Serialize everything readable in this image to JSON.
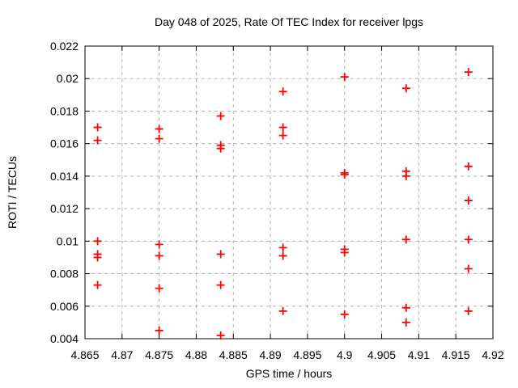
{
  "chart_data": {
    "type": "scatter",
    "title": "Day 048 of 2025, Rate Of TEC Index for receiver lpgs",
    "xlabel": "GPS time / hours",
    "ylabel": "ROTI / TECUs",
    "xlim": [
      4.865,
      4.92
    ],
    "ylim": [
      0.004,
      0.022
    ],
    "xtick_values": [
      4.865,
      4.87,
      4.875,
      4.88,
      4.885,
      4.89,
      4.895,
      4.9,
      4.905,
      4.91,
      4.915,
      4.92
    ],
    "xtick_labels": [
      "4.865",
      "4.87",
      "4.875",
      "4.88",
      "4.885",
      "4.89",
      "4.895",
      "4.9",
      "4.905",
      "4.91",
      "4.915",
      "4.92"
    ],
    "ytick_values": [
      0.004,
      0.006,
      0.008,
      0.01,
      0.012,
      0.014,
      0.016,
      0.018,
      0.02,
      0.022
    ],
    "ytick_labels": [
      "0.004",
      "0.006",
      "0.008",
      "0.01",
      "0.012",
      "0.014",
      "0.016",
      "0.018",
      "0.02",
      "0.022"
    ],
    "grid": true,
    "legend": "none",
    "marker": "plus",
    "colors": {
      "marker": "#ff0000",
      "grid": "#b0b0b0",
      "frame": "#000000",
      "text": "#000000",
      "background": "#ffffff"
    },
    "series": [
      {
        "name": "ROTI",
        "points": [
          [
            4.8667,
            0.017
          ],
          [
            4.8667,
            0.0162
          ],
          [
            4.8667,
            0.01
          ],
          [
            4.8667,
            0.0092
          ],
          [
            4.8667,
            0.009
          ],
          [
            4.8667,
            0.0073
          ],
          [
            4.875,
            0.0169
          ],
          [
            4.875,
            0.0163
          ],
          [
            4.875,
            0.0098
          ],
          [
            4.875,
            0.0091
          ],
          [
            4.875,
            0.0071
          ],
          [
            4.875,
            0.0045
          ],
          [
            4.8833,
            0.0177
          ],
          [
            4.8833,
            0.0159
          ],
          [
            4.8833,
            0.0157
          ],
          [
            4.8833,
            0.0092
          ],
          [
            4.8833,
            0.0073
          ],
          [
            4.8833,
            0.0042
          ],
          [
            4.8917,
            0.0192
          ],
          [
            4.8917,
            0.017
          ],
          [
            4.8917,
            0.0165
          ],
          [
            4.8917,
            0.0096
          ],
          [
            4.8917,
            0.0091
          ],
          [
            4.8917,
            0.0057
          ],
          [
            4.9,
            0.0201
          ],
          [
            4.9,
            0.0142
          ],
          [
            4.9,
            0.0141
          ],
          [
            4.9,
            0.0095
          ],
          [
            4.9,
            0.0093
          ],
          [
            4.9,
            0.0055
          ],
          [
            4.9083,
            0.0194
          ],
          [
            4.9083,
            0.0143
          ],
          [
            4.9083,
            0.014
          ],
          [
            4.9083,
            0.0101
          ],
          [
            4.9083,
            0.0059
          ],
          [
            4.9083,
            0.005
          ],
          [
            4.9167,
            0.0204
          ],
          [
            4.9167,
            0.0146
          ],
          [
            4.9167,
            0.0125
          ],
          [
            4.9167,
            0.0101
          ],
          [
            4.9167,
            0.0083
          ],
          [
            4.9167,
            0.0057
          ]
        ]
      }
    ]
  }
}
